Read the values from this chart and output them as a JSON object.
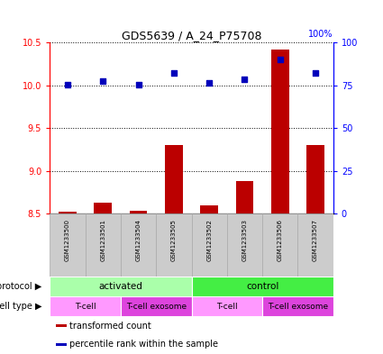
{
  "title": "GDS5639 / A_24_P75708",
  "samples": [
    "GSM1233500",
    "GSM1233501",
    "GSM1233504",
    "GSM1233505",
    "GSM1233502",
    "GSM1233503",
    "GSM1233506",
    "GSM1233507"
  ],
  "transformed_count": [
    8.52,
    8.63,
    8.53,
    9.3,
    8.6,
    8.88,
    10.42,
    9.3
  ],
  "percentile_rank": [
    75.5,
    77.5,
    75.2,
    82.0,
    76.5,
    78.5,
    90.0,
    82.0
  ],
  "ylim_left": [
    8.5,
    10.5
  ],
  "ylim_right": [
    0,
    100
  ],
  "yticks_left": [
    8.5,
    9.0,
    9.5,
    10.0,
    10.5
  ],
  "yticks_right": [
    0,
    25,
    50,
    75,
    100
  ],
  "bar_color": "#bb0000",
  "dot_color": "#0000bb",
  "bar_bottom": 8.5,
  "protocol_groups": [
    {
      "label": "activated",
      "start": 0,
      "end": 4,
      "color": "#aaffaa"
    },
    {
      "label": "control",
      "start": 4,
      "end": 8,
      "color": "#44ee44"
    }
  ],
  "cell_type_groups": [
    {
      "label": "T-cell",
      "start": 0,
      "end": 2,
      "color": "#ff99ff"
    },
    {
      "label": "T-cell exosome",
      "start": 2,
      "end": 4,
      "color": "#dd44dd"
    },
    {
      "label": "T-cell",
      "start": 4,
      "end": 6,
      "color": "#ff99ff"
    },
    {
      "label": "T-cell exosome",
      "start": 6,
      "end": 8,
      "color": "#dd44dd"
    }
  ],
  "legend_items": [
    {
      "label": "transformed count",
      "color": "#bb0000"
    },
    {
      "label": "percentile rank within the sample",
      "color": "#0000bb"
    }
  ],
  "sample_box_color": "#cccccc",
  "sample_box_edge": "#aaaaaa"
}
